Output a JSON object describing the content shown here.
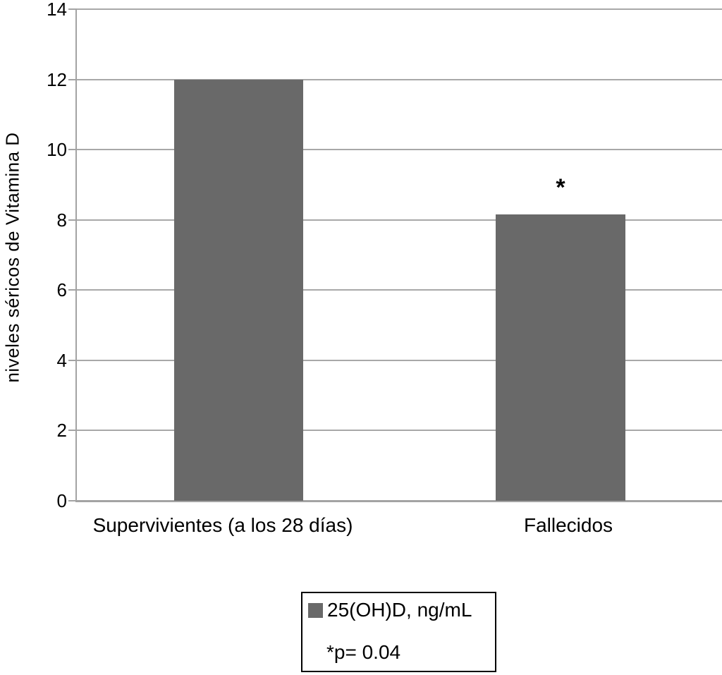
{
  "chart_data": {
    "type": "bar",
    "categories": [
      "Supervivientes (a los 28 días)",
      "Fallecidos"
    ],
    "values": [
      12,
      8.15
    ],
    "series": [
      {
        "name": "25(OH)D, ng/mL",
        "values": [
          12,
          8.15
        ]
      }
    ],
    "title": "",
    "xlabel": "",
    "ylabel": "niveles séricos de Vitamina D",
    "ylim": [
      0,
      14
    ],
    "yticks": [
      0,
      2,
      4,
      6,
      8,
      10,
      12,
      14
    ],
    "grid": true,
    "gridline_color": "#a8a8a8",
    "axis_color": "#a3a3a3",
    "bar_color": "#696969",
    "annotations": [
      {
        "category_index": 1,
        "text": "*"
      }
    ],
    "legend_position": "bottom",
    "legend": {
      "swatch_color": "#696969",
      "label": "25(OH)D, ng/mL",
      "note": "*p= 0.04"
    }
  }
}
